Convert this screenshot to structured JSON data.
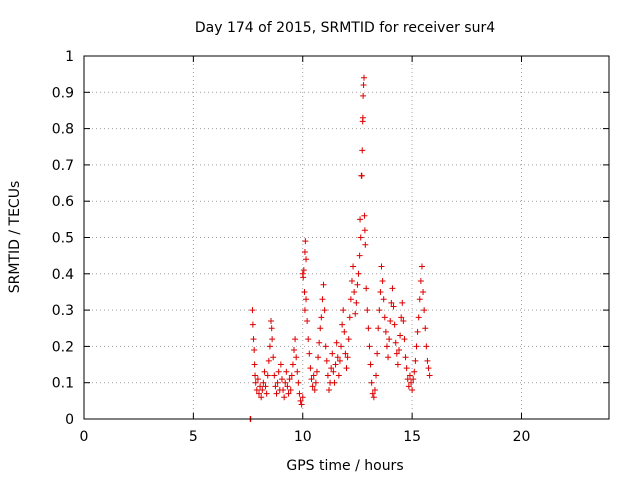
{
  "chart_data": {
    "type": "scatter",
    "title": "Day 174 of 2015, SRMTID for receiver sur4",
    "xlabel": "GPS time / hours",
    "ylabel": "SRMTID / TECUs",
    "xlim": [
      0,
      24
    ],
    "ylim": [
      0,
      1
    ],
    "xticks": [
      0,
      5,
      10,
      15,
      20
    ],
    "yticks": [
      0,
      0.1,
      0.2,
      0.3,
      0.4,
      0.5,
      0.6,
      0.7,
      0.8,
      0.9,
      1
    ],
    "xtick_labels": [
      "0",
      "5",
      "10",
      "15",
      "20"
    ],
    "ytick_labels": [
      "0",
      "0.1",
      "0.2",
      "0.3",
      "0.4",
      "0.5",
      "0.6",
      "0.7",
      "0.8",
      "0.9",
      "1"
    ],
    "grid": true,
    "marker": "+",
    "color": "#dd0000",
    "series": [
      {
        "name": "sur4",
        "points": [
          [
            7.6,
            0.0
          ],
          [
            7.62,
            0.0
          ],
          [
            7.7,
            0.3
          ],
          [
            7.72,
            0.26
          ],
          [
            7.75,
            0.22
          ],
          [
            7.78,
            0.19
          ],
          [
            7.8,
            0.15
          ],
          [
            7.82,
            0.12
          ],
          [
            7.85,
            0.1
          ],
          [
            7.9,
            0.08
          ],
          [
            7.95,
            0.11
          ],
          [
            8.0,
            0.07
          ],
          [
            8.05,
            0.09
          ],
          [
            8.1,
            0.06
          ],
          [
            8.15,
            0.08
          ],
          [
            8.2,
            0.1
          ],
          [
            8.25,
            0.13
          ],
          [
            8.3,
            0.09
          ],
          [
            8.35,
            0.07
          ],
          [
            8.4,
            0.12
          ],
          [
            8.45,
            0.16
          ],
          [
            8.5,
            0.2
          ],
          [
            8.55,
            0.27
          ],
          [
            8.58,
            0.25
          ],
          [
            8.6,
            0.22
          ],
          [
            8.65,
            0.17
          ],
          [
            8.7,
            0.12
          ],
          [
            8.75,
            0.09
          ],
          [
            8.8,
            0.07
          ],
          [
            8.85,
            0.1
          ],
          [
            8.9,
            0.13
          ],
          [
            8.95,
            0.08
          ],
          [
            9.0,
            0.15
          ],
          [
            9.05,
            0.11
          ],
          [
            9.1,
            0.08
          ],
          [
            9.15,
            0.06
          ],
          [
            9.2,
            0.1
          ],
          [
            9.25,
            0.13
          ],
          [
            9.3,
            0.09
          ],
          [
            9.35,
            0.07
          ],
          [
            9.4,
            0.11
          ],
          [
            9.45,
            0.08
          ],
          [
            9.5,
            0.12
          ],
          [
            9.55,
            0.15
          ],
          [
            9.6,
            0.19
          ],
          [
            9.65,
            0.22
          ],
          [
            9.7,
            0.17
          ],
          [
            9.75,
            0.13
          ],
          [
            9.8,
            0.1
          ],
          [
            9.85,
            0.07
          ],
          [
            9.9,
            0.05
          ],
          [
            9.95,
            0.04
          ],
          [
            10.0,
            0.06
          ],
          [
            10.0,
            0.4
          ],
          [
            10.02,
            0.39
          ],
          [
            10.05,
            0.41
          ],
          [
            10.08,
            0.35
          ],
          [
            10.1,
            0.3
          ],
          [
            10.1,
            0.46
          ],
          [
            10.12,
            0.49
          ],
          [
            10.15,
            0.44
          ],
          [
            10.15,
            0.33
          ],
          [
            10.2,
            0.27
          ],
          [
            10.25,
            0.22
          ],
          [
            10.3,
            0.18
          ],
          [
            10.35,
            0.14
          ],
          [
            10.4,
            0.11
          ],
          [
            10.45,
            0.09
          ],
          [
            10.5,
            0.12
          ],
          [
            10.55,
            0.08
          ],
          [
            10.6,
            0.1
          ],
          [
            10.65,
            0.13
          ],
          [
            10.7,
            0.17
          ],
          [
            10.75,
            0.21
          ],
          [
            10.8,
            0.25
          ],
          [
            10.85,
            0.28
          ],
          [
            10.9,
            0.33
          ],
          [
            10.95,
            0.37
          ],
          [
            11.0,
            0.3
          ],
          [
            11.05,
            0.2
          ],
          [
            11.1,
            0.16
          ],
          [
            11.15,
            0.12
          ],
          [
            11.2,
            0.08
          ],
          [
            11.25,
            0.1
          ],
          [
            11.3,
            0.14
          ],
          [
            11.35,
            0.18
          ],
          [
            11.4,
            0.13
          ],
          [
            11.45,
            0.1
          ],
          [
            11.5,
            0.15
          ],
          [
            11.55,
            0.21
          ],
          [
            11.6,
            0.17
          ],
          [
            11.65,
            0.12
          ],
          [
            11.7,
            0.16
          ],
          [
            11.75,
            0.2
          ],
          [
            11.8,
            0.26
          ],
          [
            11.85,
            0.3
          ],
          [
            11.9,
            0.24
          ],
          [
            11.95,
            0.18
          ],
          [
            12.0,
            0.14
          ],
          [
            12.05,
            0.17
          ],
          [
            12.1,
            0.22
          ],
          [
            12.15,
            0.28
          ],
          [
            12.2,
            0.33
          ],
          [
            12.25,
            0.38
          ],
          [
            12.3,
            0.42
          ],
          [
            12.35,
            0.35
          ],
          [
            12.4,
            0.29
          ],
          [
            12.45,
            0.32
          ],
          [
            12.5,
            0.37
          ],
          [
            12.55,
            0.4
          ],
          [
            12.6,
            0.45
          ],
          [
            12.62,
            0.55
          ],
          [
            12.65,
            0.5
          ],
          [
            12.68,
            0.67
          ],
          [
            12.7,
            0.67
          ],
          [
            12.72,
            0.74
          ],
          [
            12.74,
            0.82
          ],
          [
            12.75,
            0.83
          ],
          [
            12.76,
            0.89
          ],
          [
            12.78,
            0.92
          ],
          [
            12.8,
            0.94
          ],
          [
            12.82,
            0.56
          ],
          [
            12.84,
            0.52
          ],
          [
            12.86,
            0.48
          ],
          [
            12.9,
            0.36
          ],
          [
            12.95,
            0.3
          ],
          [
            13.0,
            0.25
          ],
          [
            13.05,
            0.2
          ],
          [
            13.1,
            0.15
          ],
          [
            13.15,
            0.1
          ],
          [
            13.2,
            0.07
          ],
          [
            13.25,
            0.06
          ],
          [
            13.3,
            0.08
          ],
          [
            13.35,
            0.12
          ],
          [
            13.4,
            0.18
          ],
          [
            13.45,
            0.25
          ],
          [
            13.5,
            0.3
          ],
          [
            13.55,
            0.35
          ],
          [
            13.6,
            0.42
          ],
          [
            13.65,
            0.38
          ],
          [
            13.7,
            0.33
          ],
          [
            13.75,
            0.28
          ],
          [
            13.8,
            0.24
          ],
          [
            13.85,
            0.2
          ],
          [
            13.9,
            0.17
          ],
          [
            13.95,
            0.22
          ],
          [
            14.0,
            0.27
          ],
          [
            14.05,
            0.32
          ],
          [
            14.1,
            0.36
          ],
          [
            14.15,
            0.31
          ],
          [
            14.2,
            0.26
          ],
          [
            14.25,
            0.21
          ],
          [
            14.3,
            0.18
          ],
          [
            14.35,
            0.15
          ],
          [
            14.4,
            0.19
          ],
          [
            14.45,
            0.23
          ],
          [
            14.5,
            0.28
          ],
          [
            14.55,
            0.32
          ],
          [
            14.6,
            0.27
          ],
          [
            14.65,
            0.22
          ],
          [
            14.7,
            0.17
          ],
          [
            14.75,
            0.14
          ],
          [
            14.8,
            0.11
          ],
          [
            14.85,
            0.09
          ],
          [
            14.9,
            0.12
          ],
          [
            14.95,
            0.1
          ],
          [
            15.0,
            0.08
          ],
          [
            15.05,
            0.11
          ],
          [
            15.1,
            0.13
          ],
          [
            15.15,
            0.16
          ],
          [
            15.2,
            0.2
          ],
          [
            15.25,
            0.24
          ],
          [
            15.3,
            0.28
          ],
          [
            15.35,
            0.33
          ],
          [
            15.4,
            0.38
          ],
          [
            15.45,
            0.42
          ],
          [
            15.5,
            0.35
          ],
          [
            15.55,
            0.3
          ],
          [
            15.6,
            0.25
          ],
          [
            15.65,
            0.2
          ],
          [
            15.7,
            0.16
          ],
          [
            15.75,
            0.14
          ],
          [
            15.8,
            0.12
          ]
        ]
      }
    ]
  }
}
